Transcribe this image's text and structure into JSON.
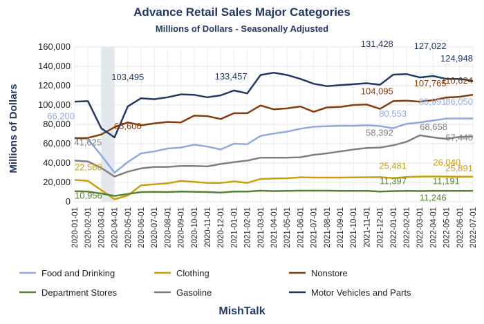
{
  "chart_data": {
    "type": "line",
    "title": "Advance Retail Sales Major Categories",
    "subtitle": "Millions of Dollars - Seasonally Adjusted",
    "ylabel": "Millions of Dollars",
    "xlabel": "",
    "footer": "MishTalk",
    "ylim": [
      0,
      160000
    ],
    "yticks": [
      0,
      20000,
      40000,
      60000,
      80000,
      100000,
      120000,
      140000,
      160000
    ],
    "ytick_labels": [
      "0",
      "20,000",
      "40,000",
      "60,000",
      "80,000",
      "100,000",
      "120,000",
      "140,000",
      "160,000"
    ],
    "grid": true,
    "legend_position": "bottom",
    "shaded_region": [
      "2020-03-01",
      "2020-04-01"
    ],
    "x": [
      "2020-01-01",
      "2020-02-01",
      "2020-03-01",
      "2020-04-01",
      "2020-05-01",
      "2020-06-01",
      "2020-07-01",
      "2020-08-01",
      "2020-09-01",
      "2020-10-01",
      "2020-11-01",
      "2020-12-01",
      "2021-01-01",
      "2021-02-01",
      "2021-03-01",
      "2021-04-01",
      "2021-05-01",
      "2021-06-01",
      "2021-07-01",
      "2021-08-01",
      "2021-09-01",
      "2021-10-01",
      "2021-11-01",
      "2021-12-01",
      "2022-01-01",
      "2022-02-01",
      "2022-03-01",
      "2022-04-01",
      "2022-05-01",
      "2022-06-01",
      "2022-07-01"
    ],
    "series": [
      {
        "name": "Food and Drinking",
        "color": "#8eaadb",
        "values": [
          66200,
          64800,
          48000,
          30000,
          41000,
          50000,
          52000,
          55000,
          56000,
          59000,
          57000,
          54000,
          60000,
          59500,
          68000,
          70500,
          72500,
          75500,
          77500,
          78000,
          78500,
          78500,
          79000,
          78200,
          76000,
          80553,
          82000,
          84000,
          85991,
          86100,
          86050
        ]
      },
      {
        "name": "Clothing",
        "color": "#c9a00a",
        "values": [
          22560,
          21500,
          12000,
          2500,
          6500,
          17000,
          18000,
          19000,
          21500,
          20500,
          19500,
          19500,
          21000,
          19500,
          23500,
          24000,
          24300,
          25300,
          25000,
          25000,
          25000,
          25200,
          25300,
          25400,
          24500,
          25481,
          26000,
          26040,
          26000,
          25900,
          25891
        ]
      },
      {
        "name": "Nonstore",
        "color": "#843c0c",
        "values": [
          65600,
          66000,
          69500,
          77000,
          82000,
          79000,
          81000,
          82500,
          82000,
          89000,
          88500,
          85500,
          91500,
          91500,
          99500,
          95500,
          96500,
          98500,
          93000,
          97500,
          98000,
          100000,
          100500,
          96000,
          104095,
          104500,
          103500,
          105000,
          107765,
          108500,
          110624
        ]
      },
      {
        "name": "Department Stores",
        "color": "#548235",
        "values": [
          10956,
          10500,
          8500,
          6000,
          8000,
          10000,
          10200,
          10000,
          10500,
          10300,
          10000,
          9500,
          10500,
          10600,
          11397,
          11000,
          11200,
          11400,
          11400,
          11400,
          11300,
          11300,
          11200,
          10500,
          11000,
          11191,
          11100,
          11246,
          11200,
          11200,
          11191
        ]
      },
      {
        "name": "Gasoline",
        "color": "#7f7f7f",
        "values": [
          42500,
          41625,
          35000,
          26000,
          31000,
          34500,
          36000,
          36000,
          37000,
          37000,
          36500,
          39000,
          41000,
          42500,
          45500,
          45500,
          45500,
          46000,
          48500,
          50000,
          52000,
          54000,
          55500,
          56000,
          58392,
          62000,
          68658,
          66500,
          65000,
          67000,
          67440
        ]
      },
      {
        "name": "Motor Vehicles and Parts",
        "color": "#1f3864",
        "values": [
          103495,
          104000,
          76000,
          66500,
          98500,
          107000,
          106000,
          108000,
          111000,
          110500,
          108000,
          110000,
          115000,
          112000,
          131000,
          133457,
          131000,
          127000,
          122000,
          119500,
          120500,
          121500,
          122500,
          121000,
          131428,
          132000,
          128500,
          130000,
          127022,
          127000,
          124948
        ]
      }
    ],
    "annotations": [
      {
        "text": "103,495",
        "series": "Motor Vehicles and Parts"
      },
      {
        "text": "133,457",
        "series": "Motor Vehicles and Parts"
      },
      {
        "text": "131,428",
        "series": "Motor Vehicles and Parts"
      },
      {
        "text": "127,022",
        "series": "Motor Vehicles and Parts"
      },
      {
        "text": "124,948",
        "series": "Motor Vehicles and Parts"
      },
      {
        "text": "104,095",
        "series": "Nonstore"
      },
      {
        "text": "107,765",
        "series": "Nonstore"
      },
      {
        "text": "110,624",
        "series": "Nonstore"
      },
      {
        "text": "65,600",
        "series": "Nonstore"
      },
      {
        "text": "66,200",
        "series": "Food and Drinking"
      },
      {
        "text": "80,553",
        "series": "Food and Drinking"
      },
      {
        "text": "85,991",
        "series": "Food and Drinking"
      },
      {
        "text": "86,050",
        "series": "Food and Drinking"
      },
      {
        "text": "41,625",
        "series": "Gasoline"
      },
      {
        "text": "58,392",
        "series": "Gasoline"
      },
      {
        "text": "68,658",
        "series": "Gasoline"
      },
      {
        "text": "67,440",
        "series": "Gasoline"
      },
      {
        "text": "22,560",
        "series": "Clothing"
      },
      {
        "text": "25,481",
        "series": "Clothing"
      },
      {
        "text": "26,040",
        "series": "Clothing"
      },
      {
        "text": "25,891",
        "series": "Clothing"
      },
      {
        "text": "10,956",
        "series": "Department Stores"
      },
      {
        "text": "11,397",
        "series": "Department Stores"
      },
      {
        "text": "11,191",
        "series": "Department Stores"
      },
      {
        "text": "11,246",
        "series": "Department Stores"
      }
    ]
  }
}
